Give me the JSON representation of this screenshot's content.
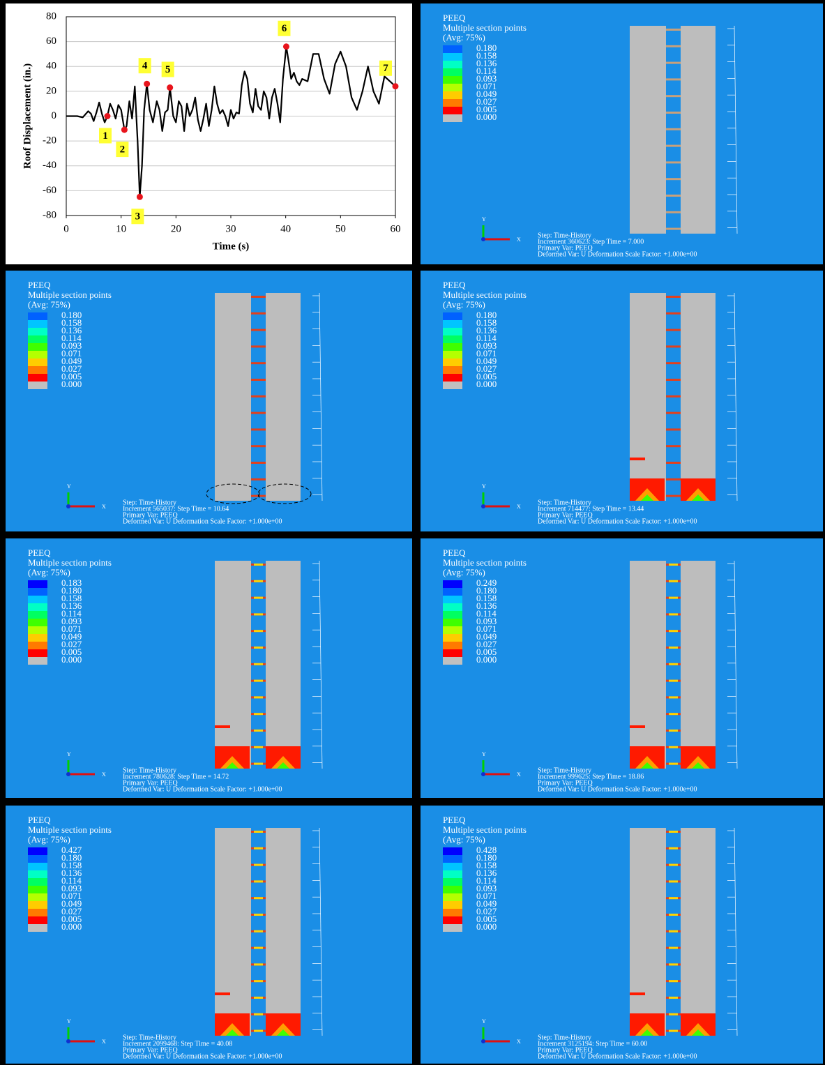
{
  "chart_data": {
    "type": "line",
    "x_label": "Time (s)",
    "y_label": "Roof Displacement (in.)",
    "xlim": [
      0,
      60
    ],
    "ylim": [
      -80,
      80
    ],
    "xticks": [
      0,
      10,
      20,
      30,
      40,
      50,
      60
    ],
    "yticks": [
      -80,
      -60,
      -40,
      -20,
      0,
      20,
      40,
      60,
      80
    ],
    "grid": true,
    "color": "#000000",
    "x": [
      0,
      2,
      3,
      4,
      4.5,
      5,
      5.5,
      6,
      6.5,
      7,
      7.5,
      8,
      8.5,
      9,
      9.5,
      10,
      10.6,
      11,
      11.5,
      12,
      12.5,
      13,
      13.4,
      13.8,
      14.2,
      14.7,
      15.2,
      15.8,
      16.5,
      17,
      17.5,
      18,
      18.5,
      18.9,
      19.5,
      20,
      20.5,
      21,
      21.5,
      22,
      22.5,
      23,
      23.5,
      24,
      24.5,
      25,
      25.5,
      26,
      26.5,
      27,
      27.5,
      28,
      28.5,
      29,
      29.5,
      30,
      30.5,
      31,
      31.5,
      32,
      32.5,
      33,
      33.5,
      34,
      34.5,
      35,
      35.5,
      36,
      36.5,
      37,
      37.5,
      38,
      38.5,
      39,
      39.5,
      40.1,
      40.5,
      41,
      41.5,
      42,
      42.5,
      43,
      44,
      45,
      46,
      47,
      48,
      49,
      50,
      51,
      52,
      53,
      54,
      55,
      56,
      57,
      58,
      59,
      60
    ],
    "values": [
      0,
      0,
      -1,
      4,
      2,
      -4,
      3,
      11,
      2,
      -5,
      0,
      10,
      5,
      -2,
      9,
      5,
      -11,
      -8,
      12,
      -2,
      24,
      -20,
      -65,
      -40,
      5,
      26,
      5,
      -5,
      12,
      5,
      -12,
      3,
      5,
      23,
      0,
      -5,
      12,
      8,
      -12,
      10,
      0,
      5,
      15,
      -3,
      -12,
      -2,
      10,
      -8,
      5,
      24,
      10,
      2,
      5,
      0,
      -8,
      5,
      -2,
      3,
      2,
      25,
      36,
      30,
      10,
      3,
      22,
      8,
      5,
      20,
      15,
      -2,
      15,
      22,
      10,
      -5,
      30,
      56,
      45,
      30,
      35,
      28,
      25,
      30,
      28,
      50,
      50,
      30,
      18,
      42,
      52,
      40,
      15,
      5,
      20,
      40,
      20,
      10,
      32,
      28,
      24
    ],
    "marker_color": "#e8141c",
    "label_background": "#ffff33",
    "annotations": [
      {
        "label": "1",
        "x": 7.5,
        "y": 0
      },
      {
        "label": "2",
        "x": 10.6,
        "y": -11
      },
      {
        "label": "3",
        "x": 13.4,
        "y": -65
      },
      {
        "label": "4",
        "x": 14.7,
        "y": 26
      },
      {
        "label": "5",
        "x": 18.9,
        "y": 23
      },
      {
        "label": "6",
        "x": 40.1,
        "y": 56
      },
      {
        "label": "7",
        "x": 60,
        "y": 24
      }
    ]
  },
  "contour_colors": [
    "#000000",
    "#0000ff",
    "#0061ff",
    "#00c5ff",
    "#00ffc5",
    "#00ff61",
    "#3fff00",
    "#b4ff00",
    "#ffcc00",
    "#ff7a00",
    "#ff0000",
    "#c0c0c0"
  ],
  "panels": [
    {
      "title": "PEEQ",
      "subtitle": "Multiple section points",
      "average": "(Avg: 75%)",
      "legend": [
        "0.180",
        "0.158",
        "0.136",
        "0.114",
        "0.093",
        "0.071",
        "0.049",
        "0.027",
        "0.005",
        "0.000"
      ],
      "axes": [
        "Y",
        "X"
      ],
      "footer": [
        "Step: Time-History",
        "Increment   360623: Step Time =     7.000",
        "Primary Var: PEEQ",
        "Deformed Var: U   Deformation Scale Factor: +1.000e+00"
      ]
    },
    {
      "title": "PEEQ",
      "subtitle": "Multiple section points",
      "average": "(Avg: 75%)",
      "legend": [
        "0.180",
        "0.158",
        "0.136",
        "0.114",
        "0.093",
        "0.071",
        "0.049",
        "0.027",
        "0.005",
        "0.000"
      ],
      "axes": [
        "Y",
        "X"
      ],
      "footer": [
        "Step: Time-History",
        "Increment   565037: Step Time =    10.64",
        "Primary Var: PEEQ",
        "Deformed Var: U   Deformation Scale Factor: +1.000e+00"
      ]
    },
    {
      "title": "PEEQ",
      "subtitle": "Multiple section points",
      "average": "(Avg: 75%)",
      "legend": [
        "0.180",
        "0.158",
        "0.136",
        "0.114",
        "0.093",
        "0.071",
        "0.049",
        "0.027",
        "0.005",
        "0.000"
      ],
      "axes": [
        "Y",
        "X"
      ],
      "footer": [
        "Step: Time-History",
        "Increment   714477: Step Time =    13.44",
        "Primary Var: PEEQ",
        "Deformed Var: U   Deformation Scale Factor: +1.000e+00"
      ]
    },
    {
      "title": "PEEQ",
      "subtitle": "Multiple section points",
      "average": "(Avg: 75%)",
      "legend": [
        "0.183",
        "0.180",
        "0.158",
        "0.136",
        "0.114",
        "0.093",
        "0.071",
        "0.049",
        "0.027",
        "0.005",
        "0.000"
      ],
      "axes": [
        "Y",
        "X"
      ],
      "footer": [
        "Step: Time-History",
        "Increment   780628: Step Time =    14.72",
        "Primary Var: PEEQ",
        "Deformed Var: U   Deformation Scale Factor: +1.000e+00"
      ]
    },
    {
      "title": "PEEQ",
      "subtitle": "Multiple section points",
      "average": "(Avg: 75%)",
      "legend": [
        "0.249",
        "0.180",
        "0.158",
        "0.136",
        "0.114",
        "0.093",
        "0.071",
        "0.049",
        "0.027",
        "0.005",
        "0.000"
      ],
      "axes": [
        "Y",
        "X"
      ],
      "footer": [
        "Step: Time-History",
        "Increment   999625: Step Time =    18.86",
        "Primary Var: PEEQ",
        "Deformed Var: U   Deformation Scale Factor: +1.000e+00"
      ]
    },
    {
      "title": "PEEQ",
      "subtitle": "Multiple section points",
      "average": "(Avg: 75%)",
      "legend": [
        "0.427",
        "0.180",
        "0.158",
        "0.136",
        "0.114",
        "0.093",
        "0.071",
        "0.049",
        "0.027",
        "0.005",
        "0.000"
      ],
      "axes": [
        "Y",
        "X"
      ],
      "footer": [
        "Step: Time-History",
        "Increment  2099468: Step Time =    40.08",
        "Primary Var: PEEQ",
        "Deformed Var: U   Deformation Scale Factor: +1.000e+00"
      ]
    },
    {
      "title": "PEEQ",
      "subtitle": "Multiple section points",
      "average": "(Avg: 75%)",
      "legend": [
        "0.428",
        "0.180",
        "0.158",
        "0.136",
        "0.114",
        "0.093",
        "0.071",
        "0.049",
        "0.027",
        "0.005",
        "0.000"
      ],
      "axes": [
        "Y",
        "X"
      ],
      "footer": [
        "Step: Time-History",
        "Increment  3125194: Step Time =    60.00",
        "Primary Var: PEEQ",
        "Deformed Var: U   Deformation Scale Factor: +1.000e+00"
      ]
    }
  ]
}
